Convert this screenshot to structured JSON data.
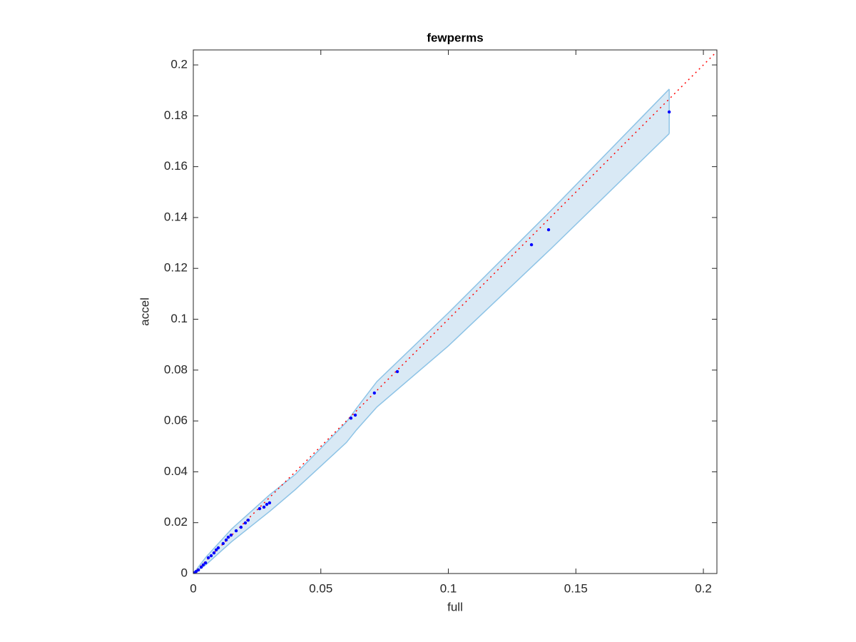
{
  "chart_data": {
    "type": "scatter",
    "title": "fewperms",
    "xlabel": "full",
    "ylabel": "accel",
    "xlim": [
      0,
      0.2053
    ],
    "ylim": [
      0,
      0.2059
    ],
    "xticks": [
      0,
      0.05,
      0.1,
      0.15,
      0.2
    ],
    "yticks": [
      0,
      0.02,
      0.04,
      0.06,
      0.08,
      0.1,
      0.12,
      0.14,
      0.16,
      0.18,
      0.2
    ],
    "color": "#0000ff",
    "x": [
      0.1866,
      0.1393,
      0.1326,
      0.08,
      0.071,
      0.0635,
      0.0618,
      0.0299,
      0.0288,
      0.0277,
      0.026,
      0.0215,
      0.0204,
      0.0187,
      0.0168,
      0.0148,
      0.0137,
      0.0129,
      0.0117,
      0.0098,
      0.009,
      0.0081,
      0.007,
      0.0059,
      0.0048,
      0.0039,
      0.0031,
      0.002,
      0.0011,
      0.0003
    ],
    "values": [
      0.1815,
      0.1352,
      0.1293,
      0.0794,
      0.071,
      0.0623,
      0.0611,
      0.0278,
      0.0272,
      0.0261,
      0.0255,
      0.021,
      0.0199,
      0.0182,
      0.0168,
      0.0151,
      0.0143,
      0.0132,
      0.0118,
      0.0101,
      0.0093,
      0.0081,
      0.007,
      0.0062,
      0.0042,
      0.0034,
      0.0025,
      0.0014,
      0.0008,
      0.0003
    ],
    "band": {
      "color": "#8dc3e6",
      "fill": "#d9e9f5",
      "x": [
        0,
        0.005,
        0.01,
        0.015,
        0.02,
        0.03,
        0.04,
        0.06,
        0.064,
        0.072,
        0.1,
        0.14,
        0.1866
      ],
      "upper": [
        0,
        0.0065,
        0.012,
        0.0175,
        0.022,
        0.031,
        0.039,
        0.0595,
        0.065,
        0.0755,
        0.1025,
        0.1425,
        0.1905
      ],
      "lower": [
        0,
        0.0035,
        0.008,
        0.0125,
        0.0165,
        0.0245,
        0.033,
        0.0515,
        0.0565,
        0.0655,
        0.0895,
        0.1275,
        0.173
      ]
    },
    "ref_line": {
      "color": "#ff0000",
      "x": [
        0,
        0.2053
      ],
      "y": [
        0,
        0.2053
      ]
    }
  }
}
